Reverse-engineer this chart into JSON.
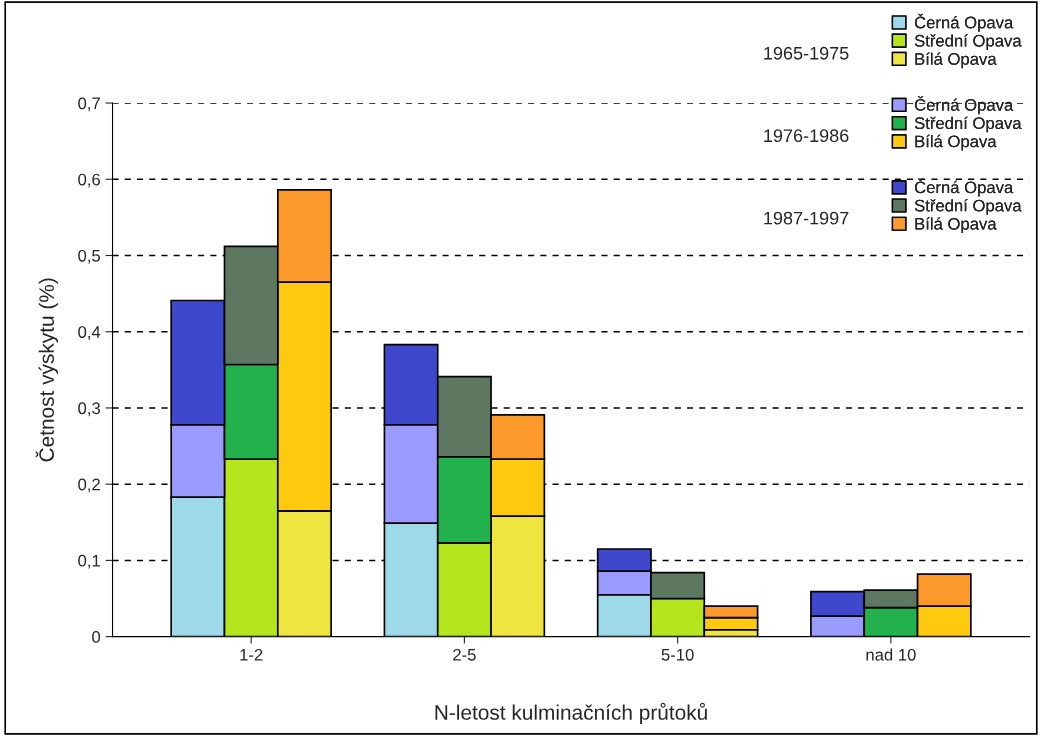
{
  "chart_data": {
    "type": "bar",
    "stacked": true,
    "categories": [
      null,
      "1-2",
      null,
      null,
      null,
      "2-5",
      null,
      null,
      null,
      "5-10",
      null,
      null,
      null,
      "nad 10",
      null
    ],
    "xlabel": "N-letost kulminačních průtoků",
    "ylabel": "Četnost výskytu (%)",
    "ylim": [
      0,
      0.7
    ],
    "yticks": [
      0,
      {
        "value": 0.1,
        "label": "0,1"
      },
      {
        "value": 0.2,
        "label": "0,2"
      },
      {
        "value": 0.3,
        "label": "0,3"
      },
      {
        "value": 0.4,
        "label": "0,4"
      },
      {
        "value": 0.5,
        "label": "0,5"
      },
      {
        "value": 0.6,
        "label": "0,6"
      },
      {
        "value": 0.7,
        "label": "0,7"
      }
    ],
    "grid": "y",
    "legend": "top right",
    "annotations": [
      "1965-1975",
      "1976-1986",
      "1987-1997"
    ],
    "series": [
      {
        "name": "Černá Opava",
        "color": "#9dd9e8",
        "values": [
          0.183,
          null,
          null,
          null,
          0.149,
          null,
          null,
          null,
          0.055,
          null,
          null,
          null,
          0,
          null,
          null
        ]
      },
      {
        "name": "Střední Opava",
        "color": "#b5e51d",
        "values": [
          null,
          0.233,
          null,
          null,
          null,
          0.123,
          null,
          null,
          null,
          0.05,
          null,
          null,
          null,
          0,
          null
        ]
      },
      {
        "name": "Bílá Opava",
        "color": "#f0e440",
        "values": [
          null,
          null,
          0.165,
          null,
          null,
          null,
          0.158,
          null,
          null,
          null,
          0.009,
          null,
          null,
          null,
          0
        ]
      },
      {
        "name": "Černá Opava",
        "color": "#9b9bfd",
        "values": [
          0.095,
          null,
          null,
          null,
          0.129,
          null,
          null,
          null,
          0.031,
          null,
          null,
          null,
          0.027,
          null,
          null
        ]
      },
      {
        "name": "Střední Opava",
        "color": "#23b14d",
        "values": [
          null,
          0.124,
          null,
          null,
          null,
          0.113,
          null,
          null,
          null,
          0,
          null,
          null,
          null,
          0.038,
          null
        ]
      },
      {
        "name": "Bílá Opava",
        "color": "#fec90f",
        "values": [
          null,
          null,
          0.3,
          null,
          null,
          null,
          0.075,
          null,
          null,
          null,
          0.016,
          null,
          null,
          null,
          0.04
        ]
      },
      {
        "name": "Černá Opava",
        "color": "#3f48cc",
        "values": [
          0.163,
          null,
          null,
          null,
          0.105,
          null,
          null,
          null,
          0.029,
          null,
          null,
          null,
          0.032,
          null,
          null
        ]
      },
      {
        "name": "Střední Opava",
        "color": "#5e7760",
        "values": [
          null,
          0.155,
          null,
          null,
          null,
          0.105,
          null,
          null,
          null,
          0.034,
          null,
          null,
          null,
          0.023,
          null
        ]
      },
      {
        "name": "Bílá Opava",
        "color": "#fb992b",
        "values": [
          null,
          null,
          0.121,
          null,
          null,
          null,
          0.058,
          null,
          null,
          null,
          0.015,
          null,
          null,
          null,
          0.042
        ]
      }
    ]
  }
}
